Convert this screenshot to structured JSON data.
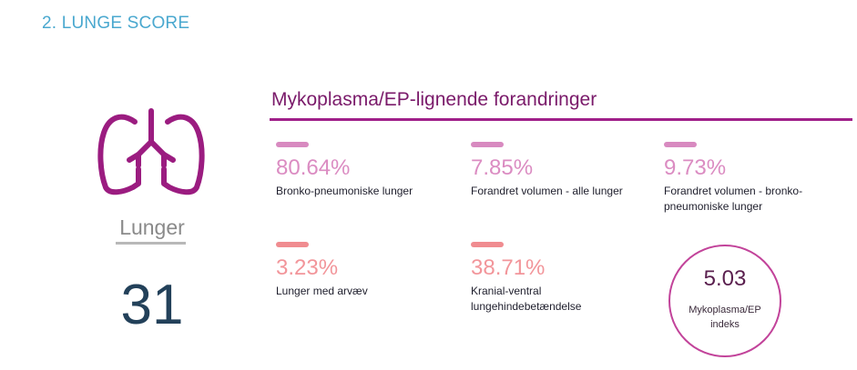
{
  "section": {
    "title": "2. LUNGE SCORE"
  },
  "organ": {
    "icon": "lungs-icon",
    "label": "Lunger",
    "score": "31"
  },
  "panel": {
    "title": "Mykoplasma/EP-lignende forandringer",
    "stats": [
      {
        "value": "80.64%",
        "label": "Bronko-pneumoniske lunger",
        "color": "#db8cc2"
      },
      {
        "value": "7.85%",
        "label": "Forandret volumen - alle lunger",
        "color": "#db8cc2"
      },
      {
        "value": "9.73%",
        "label": "Forandret  volumen - bronko-pneumoniske lunger",
        "color": "#db8cc2"
      },
      {
        "value": "3.23%",
        "label": "Lunger med arvæv",
        "color": "#f2959a"
      },
      {
        "value": "38.71%",
        "label": "Kranial-ventral lungehindebetændelse",
        "color": "#f2959a"
      }
    ],
    "index": {
      "value": "5.03",
      "label": "Mykoplasma/EP indeks",
      "color": "#c2439a"
    }
  }
}
